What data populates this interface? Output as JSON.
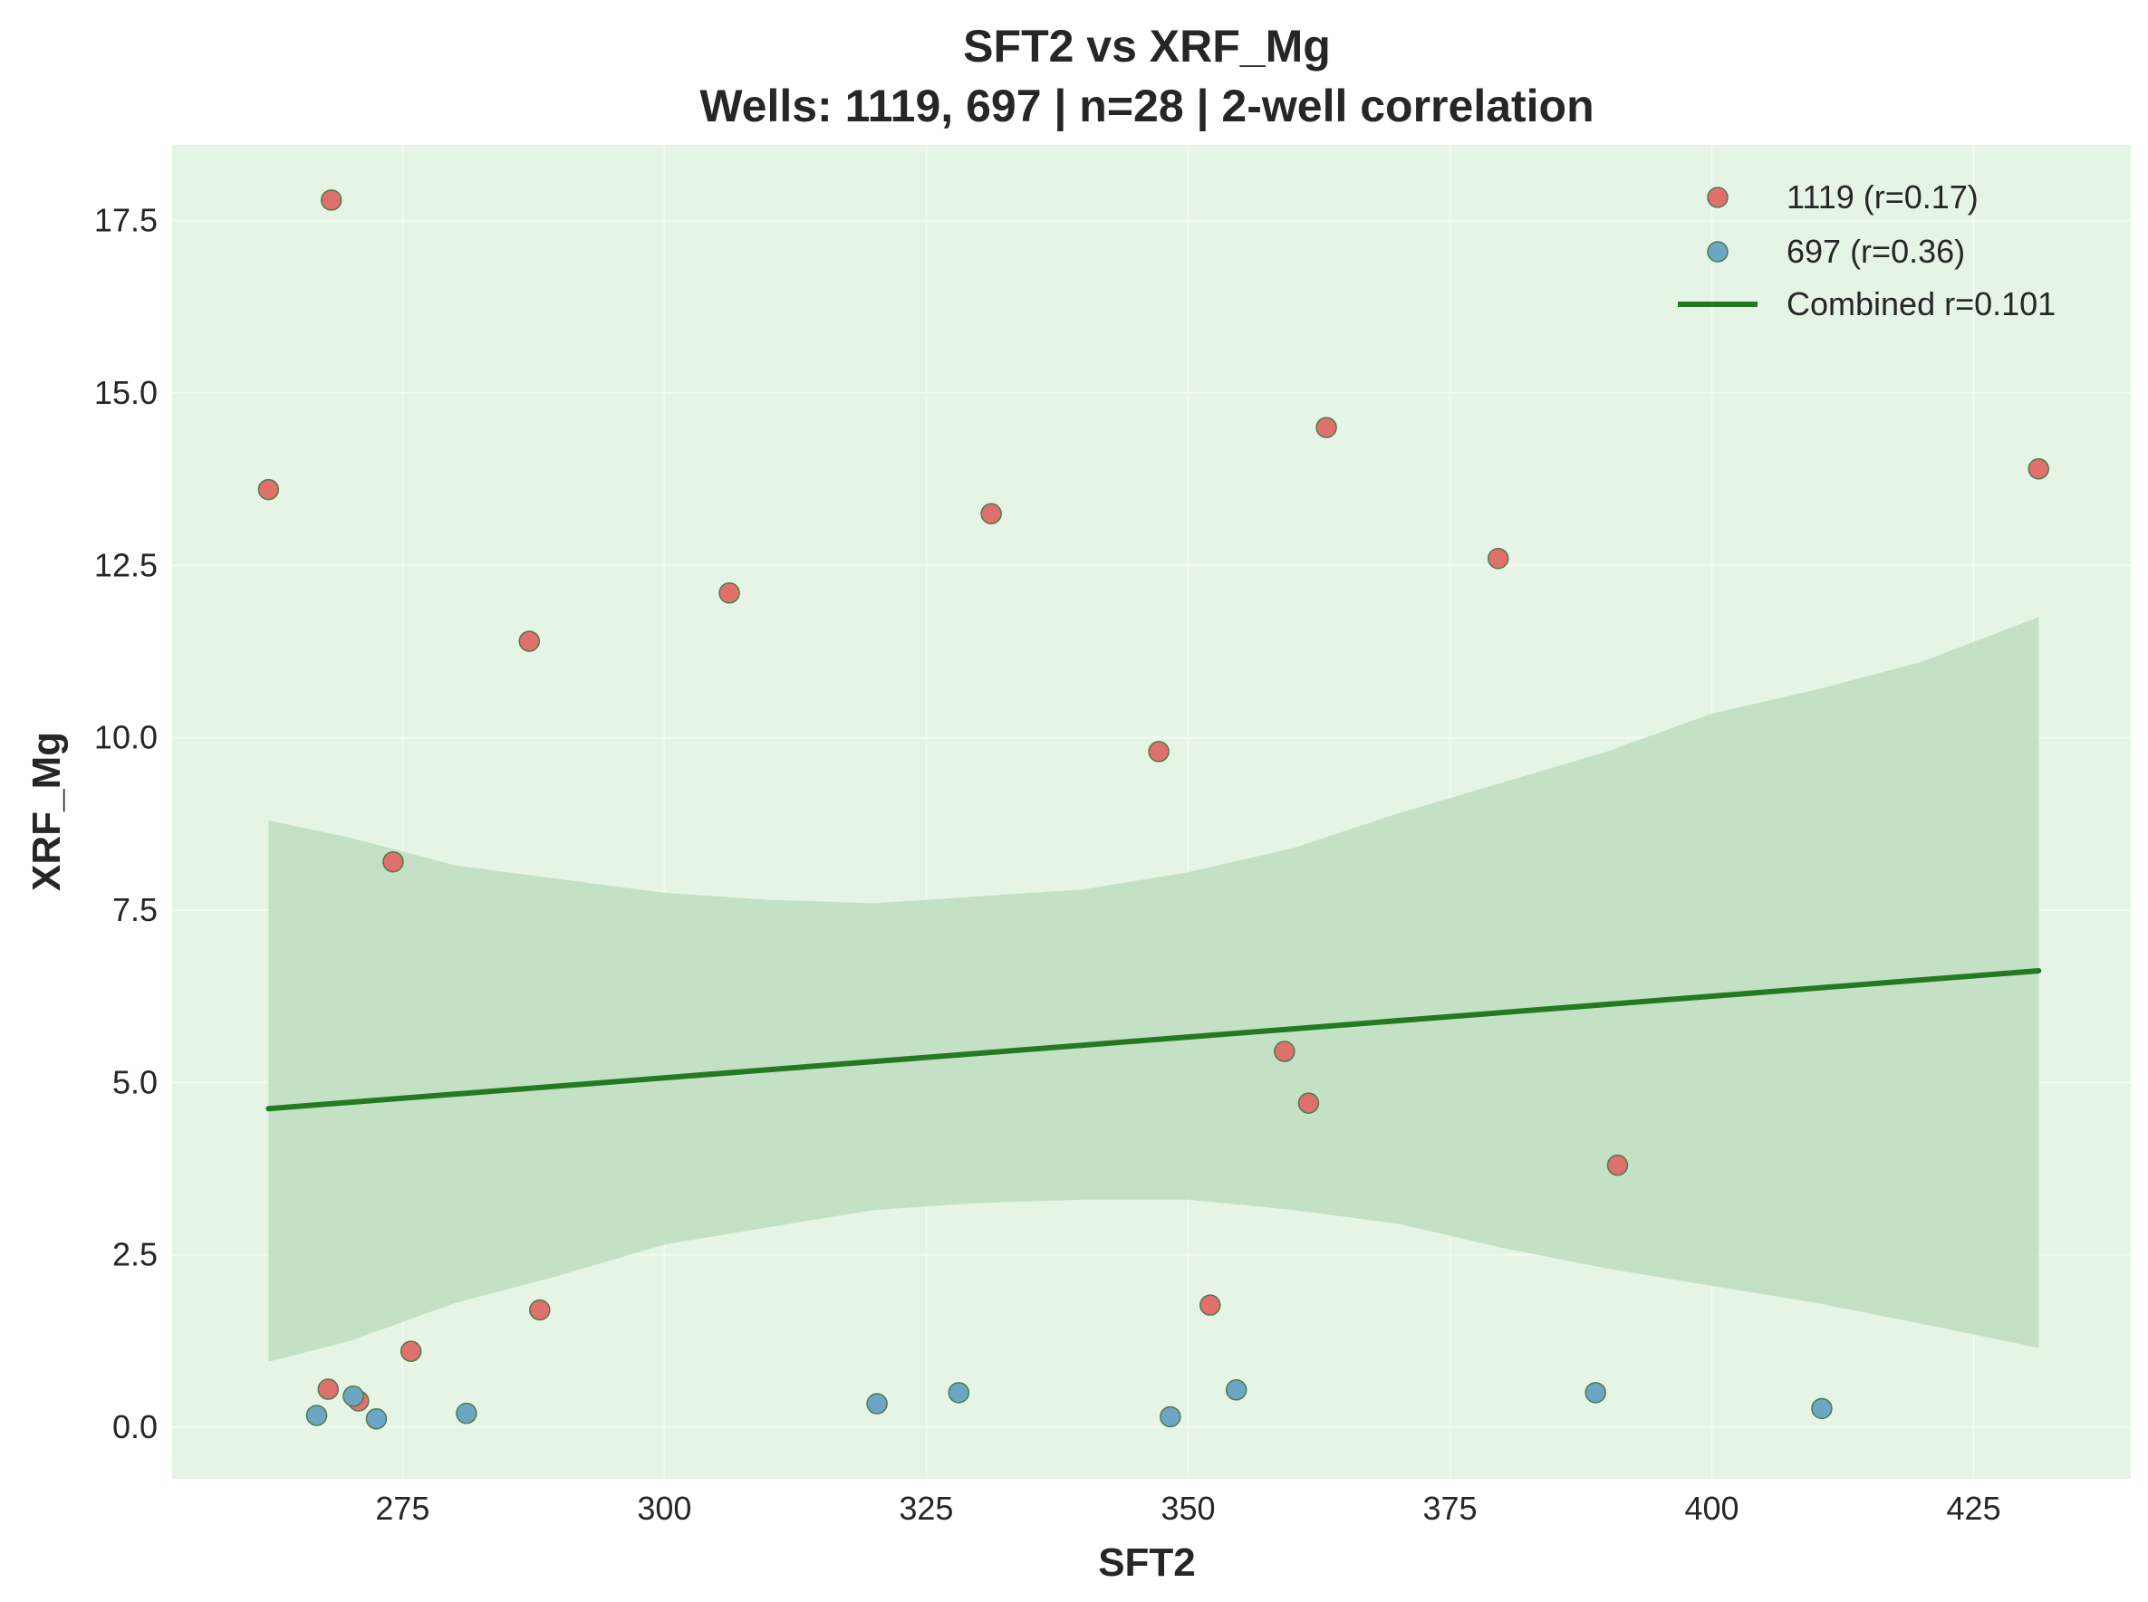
{
  "chart_data": {
    "type": "scatter",
    "title": "SFT2 vs XRF_Mg",
    "subtitle": "Wells: 1119, 697 | n=28 | 2-well correlation",
    "xlabel": "SFT2",
    "ylabel": "XRF_Mg",
    "xlim": [
      253,
      440
    ],
    "ylim": [
      -0.75,
      18.6
    ],
    "xticks": [
      275,
      300,
      325,
      350,
      375,
      400,
      425
    ],
    "yticks": [
      0.0,
      2.5,
      5.0,
      7.5,
      10.0,
      12.5,
      15.0,
      17.5
    ],
    "grid": true,
    "legend_position": "top-right",
    "colors": {
      "background": "#e6f4e6",
      "well_1119": "#e0706c",
      "well_697": "#6ba7c4",
      "marker_edge": "#4d7a4d",
      "fit_line": "#237a23",
      "confidence_band": "#c3dfc3",
      "grid": "#f2f9f2"
    },
    "series": [
      {
        "name": "1119 (r=0.17)",
        "well": "1119",
        "points": [
          [
            262.2,
            13.6
          ],
          [
            268.2,
            17.8
          ],
          [
            267.9,
            0.55
          ],
          [
            270.8,
            0.38
          ],
          [
            274.1,
            8.2
          ],
          [
            275.8,
            1.1
          ],
          [
            287.1,
            11.4
          ],
          [
            288.1,
            1.7
          ],
          [
            306.2,
            12.1
          ],
          [
            331.2,
            13.25
          ],
          [
            347.2,
            9.8
          ],
          [
            352.1,
            1.77
          ],
          [
            359.2,
            5.45
          ],
          [
            361.5,
            4.7
          ],
          [
            363.2,
            14.5
          ],
          [
            379.6,
            12.6
          ],
          [
            391.0,
            3.8
          ],
          [
            431.2,
            13.9
          ]
        ]
      },
      {
        "name": "697 (r=0.36)",
        "well": "697",
        "points": [
          [
            266.8,
            0.17
          ],
          [
            270.3,
            0.45
          ],
          [
            272.5,
            0.12
          ],
          [
            281.1,
            0.2
          ],
          [
            320.3,
            0.34
          ],
          [
            328.1,
            0.5
          ],
          [
            348.3,
            0.15
          ],
          [
            354.6,
            0.54
          ],
          [
            388.9,
            0.5
          ],
          [
            410.5,
            0.27
          ]
        ]
      }
    ],
    "fit": {
      "name": "Combined r=0.101",
      "x": [
        262.2,
        431.2
      ],
      "y": [
        4.62,
        6.62
      ]
    },
    "confidence_band": {
      "x": [
        262.2,
        270,
        280,
        290,
        300,
        310,
        320,
        330,
        340,
        350,
        360,
        370,
        380,
        390,
        400,
        410,
        420,
        431.2
      ],
      "upper": [
        8.8,
        8.55,
        8.15,
        7.95,
        7.75,
        7.65,
        7.6,
        7.7,
        7.8,
        8.05,
        8.4,
        8.9,
        9.35,
        9.8,
        10.35,
        10.7,
        11.1,
        11.75
      ],
      "lower": [
        0.95,
        1.25,
        1.8,
        2.2,
        2.65,
        2.9,
        3.15,
        3.25,
        3.3,
        3.3,
        3.15,
        2.95,
        2.6,
        2.3,
        2.05,
        1.8,
        1.5,
        1.15
      ]
    }
  }
}
